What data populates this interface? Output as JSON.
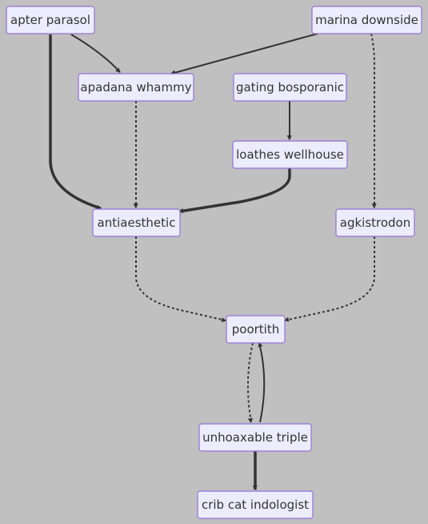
{
  "nodes": {
    "apter_parasol": "apter parasol",
    "marina_downside": "marina downside",
    "apadana_whammy": "apadana whammy",
    "gating_bosporanic": "gating bosporanic",
    "loathes_wellhouse": "loathes wellhouse",
    "antiaesthetic": "antiaesthetic",
    "agkistrodon": "agkistrodon",
    "poortith": "poortith",
    "unhoaxable_triple": "unhoaxable triple",
    "crib_cat_indologist": "crib cat indologist"
  },
  "edges": [
    {
      "from": "apter parasol",
      "to": "apadana whammy",
      "style": "normal"
    },
    {
      "from": "marina downside",
      "to": "apadana whammy",
      "style": "normal"
    },
    {
      "from": "gating bosporanic",
      "to": "loathes wellhouse",
      "style": "normal"
    },
    {
      "from": "apter parasol",
      "to": "antiaesthetic",
      "style": "thick"
    },
    {
      "from": "apadana whammy",
      "to": "antiaesthetic",
      "style": "dotted"
    },
    {
      "from": "loathes wellhouse",
      "to": "antiaesthetic",
      "style": "thick"
    },
    {
      "from": "marina downside",
      "to": "agkistrodon",
      "style": "dotted"
    },
    {
      "from": "antiaesthetic",
      "to": "poortith",
      "style": "dotted"
    },
    {
      "from": "agkistrodon",
      "to": "poortith",
      "style": "dotted"
    },
    {
      "from": "poortith",
      "to": "unhoaxable triple",
      "style": "dotted"
    },
    {
      "from": "unhoaxable triple",
      "to": "poortith",
      "style": "normal"
    },
    {
      "from": "unhoaxable triple",
      "to": "crib cat indologist",
      "style": "thick"
    }
  ],
  "colors": {
    "background": "#c0c0c0",
    "node_fill": "#ececff",
    "node_border": "#9370db",
    "edge": "#333333",
    "text": "#333333"
  }
}
